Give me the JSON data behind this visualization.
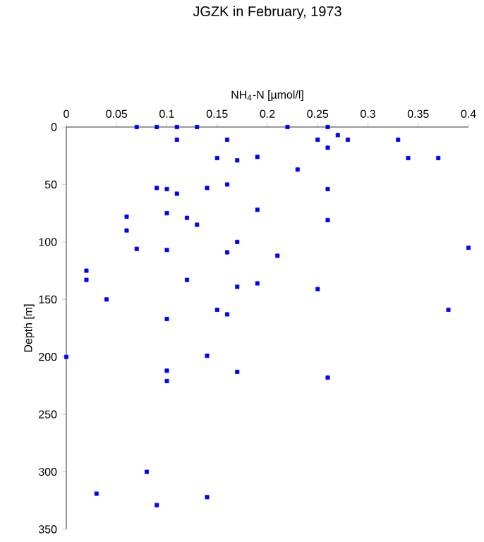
{
  "chart_data": {
    "type": "scatter",
    "title": "JGZK in February, 1973",
    "xlabel": "NH$_{4}$-N [µmol/l]",
    "ylabel": "Depth [m]",
    "xlim": [
      0,
      0.4
    ],
    "xticks": [
      0,
      0.05,
      0.1,
      0.15,
      0.2,
      0.25,
      0.3,
      0.35,
      0.4
    ],
    "ylim": [
      350,
      0
    ],
    "yticks": [
      0,
      50,
      100,
      150,
      200,
      250,
      300,
      350
    ],
    "marker": "square",
    "grid": false,
    "series": [
      {
        "color": "#0000ff",
        "x": [
          0.07,
          0.09,
          0.11,
          0.13,
          0.22,
          0.26,
          0.27,
          0.28,
          0.33,
          0.25,
          0.11,
          0.16,
          0.26,
          0.15,
          0.17,
          0.19,
          0.34,
          0.37,
          0.23,
          0.09,
          0.1,
          0.11,
          0.14,
          0.16,
          0.26,
          0.06,
          0.1,
          0.12,
          0.13,
          0.19,
          0.26,
          0.06,
          0.17,
          0.07,
          0.1,
          0.16,
          0.4,
          0.21,
          0.02,
          0.02,
          0.12,
          0.17,
          0.19,
          0.25,
          0.04,
          0.15,
          0.16,
          0.38,
          0.1,
          0.0,
          0.14,
          0.1,
          0.1,
          0.17,
          0.26,
          0.03,
          0.08,
          0.09,
          0.14
        ],
        "values": [
          0,
          0,
          0,
          0,
          0,
          0,
          7,
          11,
          11,
          11,
          11,
          11,
          18,
          27,
          29,
          26,
          27,
          27,
          37,
          53,
          54,
          58,
          53,
          50,
          54,
          78,
          75,
          79,
          85,
          72,
          81,
          90,
          100,
          106,
          107,
          109,
          105,
          112,
          125,
          133,
          133,
          139,
          136,
          141,
          150,
          159,
          163,
          159,
          167,
          200,
          199,
          212,
          221,
          213,
          218,
          319,
          300,
          329,
          322
        ]
      }
    ]
  }
}
